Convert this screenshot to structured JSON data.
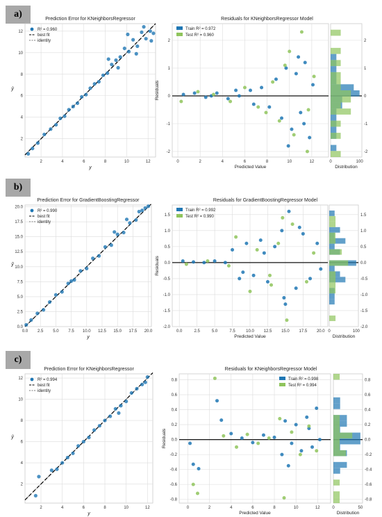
{
  "panel_labels": [
    "a)",
    "b)",
    "c)"
  ],
  "colors": {
    "train": "#1f77b4",
    "test": "#8fc45c",
    "identity": "#777777",
    "bestfit": "#000000",
    "grid": "#dcdcdc"
  },
  "chart_data": [
    {
      "type": "scatter",
      "title": "Prediction Error for KNeighborsRegressor",
      "xlabel": "y",
      "ylabel": "ŷ",
      "xlim": [
        0.5,
        12.7
      ],
      "ylim": [
        0.3,
        12.7
      ],
      "xticks": [
        2,
        4,
        6,
        8,
        10,
        12
      ],
      "yticks": [
        2,
        4,
        6,
        8,
        10,
        12
      ],
      "legend": [
        "R² = 0.960",
        "best fit",
        "identity"
      ],
      "legend_position": "top-left",
      "x": [
        0.8,
        1.2,
        1.7,
        2.3,
        2.9,
        3.4,
        3.8,
        4.2,
        4.6,
        5.0,
        5.4,
        5.8,
        6.2,
        6.6,
        7.0,
        7.4,
        7.8,
        8.2,
        8.6,
        9.0,
        9.4,
        9.8,
        10.2,
        10.6,
        11.0,
        11.4,
        11.8,
        12.2,
        12.5,
        8.3,
        9.2,
        10.1,
        10.9,
        11.6,
        12.3
      ],
      "y": [
        0.6,
        1.1,
        1.6,
        2.4,
        2.9,
        3.3,
        3.9,
        4.1,
        4.7,
        5.0,
        5.3,
        5.9,
        6.1,
        6.7,
        7.1,
        7.3,
        7.9,
        8.1,
        8.9,
        9.3,
        9.6,
        10.4,
        10.1,
        11.2,
        10.6,
        11.9,
        11.3,
        12.0,
        11.8,
        9.4,
        8.6,
        11.7,
        9.9,
        12.4,
        11.1
      ]
    },
    {
      "type": "scatter",
      "title": "Residuals for KNeighborsRegressor Model",
      "xlabel": "Predicted Value",
      "ylabel": "Residuals",
      "xlim": [
        -0.5,
        13.5
      ],
      "ylim": [
        -2.2,
        2.6
      ],
      "xticks": [
        0,
        2,
        4,
        6,
        8,
        10,
        12
      ],
      "yticks": [
        -2,
        -1,
        0,
        1,
        2
      ],
      "series": [
        {
          "name": "Train R² = 0.972",
          "x": [
            0.5,
            1.5,
            2.5,
            3.5,
            4.5,
            5.5,
            6.5,
            7.5,
            8.2,
            8.8,
            9.3,
            9.7,
            10.2,
            10.6,
            11.0,
            11.4,
            11.8,
            12.1,
            9.9,
            10.8,
            11.3,
            6.8,
            5.2,
            3.0
          ],
          "y": [
            0.05,
            0.1,
            -0.05,
            0.1,
            -0.1,
            0.0,
            0.2,
            0.3,
            -0.4,
            0.6,
            -0.8,
            1.0,
            -1.2,
            0.8,
            -0.6,
            1.2,
            -1.5,
            0.4,
            -1.8,
            1.4,
            -1.0,
            -0.3,
            0.2,
            0.0
          ]
        },
        {
          "name": "Test R² = 0.960",
          "x": [
            0.3,
            1.8,
            3.2,
            4.7,
            6.0,
            7.2,
            8.5,
            9.1,
            9.6,
            10.4,
            11.1,
            11.6,
            12.2,
            10.0,
            11.7,
            7.9
          ],
          "y": [
            -0.2,
            0.15,
            0.05,
            -0.2,
            0.3,
            -0.4,
            0.5,
            -0.9,
            1.1,
            -1.4,
            2.3,
            -2.0,
            0.7,
            1.6,
            -0.5,
            -0.6
          ]
        }
      ],
      "hist_xlabel": "Distribution",
      "hist_xticks": [
        0,
        100
      ],
      "legend_position": "top-left"
    },
    {
      "type": "scatter",
      "title": "Prediction Error for GradientBoostingRegressor",
      "xlabel": "y",
      "ylabel": "ŷ",
      "xlim": [
        0,
        20.5
      ],
      "ylim": [
        0,
        20.3
      ],
      "xticks": [
        0.0,
        2.5,
        5.0,
        7.5,
        10.0,
        12.5,
        15.0,
        17.5,
        20.0
      ],
      "yticks": [
        0.0,
        2.5,
        5.0,
        7.5,
        10.0,
        12.5,
        15.0,
        17.5,
        20.0
      ],
      "legend": [
        "R² = 0.990",
        "best fit",
        "identity"
      ],
      "legend_position": "top-left",
      "x": [
        0.2,
        1.0,
        2.0,
        3.0,
        4.0,
        5.0,
        6.0,
        7.0,
        7.5,
        8.0,
        9.0,
        10.0,
        11.0,
        12.0,
        13.0,
        14.0,
        15.0,
        16.0,
        17.0,
        18.0,
        19.0,
        19.5,
        20.0,
        14.5,
        16.5,
        18.5
      ],
      "y": [
        0.3,
        1.1,
        2.2,
        2.8,
        4.1,
        5.3,
        5.8,
        7.2,
        7.6,
        7.8,
        9.3,
        9.7,
        11.4,
        11.8,
        13.3,
        13.6,
        15.4,
        15.7,
        17.3,
        17.8,
        19.4,
        19.8,
        20.1,
        15.8,
        17.9,
        19.2
      ]
    },
    {
      "type": "scatter",
      "title": "Residuals for GradientBoostingRegressor Model",
      "xlabel": "Predicted Value",
      "ylabel": "Residuals",
      "xlim": [
        -1,
        21
      ],
      "ylim": [
        -2.0,
        1.8
      ],
      "xticks": [
        0.0,
        2.5,
        5.0,
        7.5,
        10.0,
        12.5,
        15.0,
        17.5,
        20.0
      ],
      "yticks": [
        -2.0,
        -1.5,
        -1.0,
        -0.5,
        0.0,
        0.5,
        1.0,
        1.5
      ],
      "series": [
        {
          "name": "Train R² = 0.992",
          "x": [
            0.5,
            2.0,
            3.5,
            5.0,
            6.5,
            7.5,
            8.5,
            9.5,
            10.5,
            11.5,
            12.5,
            13.5,
            14.5,
            15.0,
            15.5,
            16.5,
            17.5,
            18.5,
            19.5,
            20.0,
            14.8,
            12.0,
            9.0,
            17.0
          ],
          "y": [
            0.05,
            0.02,
            0.0,
            0.05,
            0.0,
            0.4,
            -0.5,
            0.6,
            -0.4,
            0.7,
            -0.6,
            0.5,
            1.0,
            -1.3,
            1.6,
            -0.8,
            0.9,
            -0.5,
            0.6,
            -0.2,
            -1.1,
            0.3,
            -0.3,
            1.1
          ]
        },
        {
          "name": "Test R² = 0.990",
          "x": [
            1.0,
            4.0,
            7.0,
            8.0,
            10.0,
            11.0,
            13.0,
            14.0,
            15.2,
            16.0,
            18.0,
            19.0,
            14.6,
            12.8
          ],
          "y": [
            -0.05,
            0.05,
            -0.1,
            0.8,
            -0.9,
            0.4,
            -0.7,
            0.6,
            -1.8,
            1.2,
            -0.6,
            0.3,
            1.4,
            -0.4
          ]
        }
      ],
      "hist_xlabel": "Distribution",
      "hist_xticks": [
        0,
        100
      ],
      "legend_position": "top-left"
    },
    {
      "type": "scatter",
      "title": "Prediction Error for KNeighborsRegressor",
      "xlabel": "y",
      "ylabel": "ŷ",
      "xlim": [
        0.5,
        12.5
      ],
      "ylim": [
        0.2,
        12.4
      ],
      "xticks": [
        2,
        4,
        6,
        8,
        10,
        12
      ],
      "yticks": [
        2,
        4,
        6,
        8,
        10,
        12
      ],
      "legend": [
        "R² = 0.994",
        "best fit",
        "identity"
      ],
      "legend_position": "top-left",
      "x": [
        1.5,
        1.8,
        3.0,
        3.5,
        4.0,
        4.5,
        5.0,
        5.5,
        6.0,
        6.5,
        7.0,
        7.5,
        8.0,
        8.5,
        9.0,
        9.5,
        10.0,
        10.5,
        11.0,
        11.5,
        12.0,
        9.3,
        11.8
      ],
      "y": [
        0.9,
        2.7,
        3.3,
        3.4,
        4.0,
        4.5,
        4.9,
        5.6,
        6.0,
        6.4,
        7.1,
        7.5,
        8.0,
        8.4,
        9.1,
        9.4,
        9.8,
        10.6,
        11.0,
        11.4,
        12.1,
        8.7,
        11.6
      ]
    },
    {
      "type": "scatter",
      "title": "Residuals for KNeighborsRegressor Model",
      "xlabel": "Predicted Value",
      "ylabel": "Residuals",
      "xlim": [
        -0.8,
        13.2
      ],
      "ylim": [
        -0.85,
        0.88
      ],
      "xticks": [
        0,
        2,
        4,
        6,
        8,
        10,
        12
      ],
      "yticks": [
        -0.8,
        -0.6,
        -0.4,
        -0.2,
        0.0,
        0.2,
        0.4,
        0.6,
        0.8
      ],
      "series": [
        {
          "name": "Train R² = 0.998",
          "x": [
            0.2,
            0.5,
            1.0,
            2.7,
            3.1,
            4.0,
            5.0,
            6.0,
            7.0,
            8.0,
            8.7,
            9.0,
            9.3,
            10.0,
            10.5,
            11.0,
            11.5,
            11.9,
            12.2,
            9.6,
            11.2
          ],
          "y": [
            -0.05,
            -0.33,
            -0.39,
            0.52,
            0.26,
            0.08,
            0.02,
            -0.04,
            0.06,
            0.03,
            -0.2,
            0.25,
            -0.35,
            0.2,
            -0.15,
            0.3,
            -0.1,
            0.42,
            0.0,
            -0.05,
            0.15
          ]
        },
        {
          "name": "Test R² = 0.994",
          "x": [
            0.5,
            0.9,
            2.5,
            3.3,
            4.5,
            5.5,
            6.5,
            7.5,
            8.5,
            8.9,
            9.6,
            10.4,
            11.2,
            11.9
          ],
          "y": [
            -0.6,
            -0.72,
            0.82,
            0.05,
            -0.1,
            0.07,
            -0.05,
            0.02,
            0.28,
            -0.78,
            0.1,
            -0.2,
            0.18,
            -0.15
          ]
        }
      ],
      "hist_xlabel": "Distribution",
      "hist_xticks": [
        0,
        50
      ],
      "legend_position": "top-right"
    }
  ]
}
